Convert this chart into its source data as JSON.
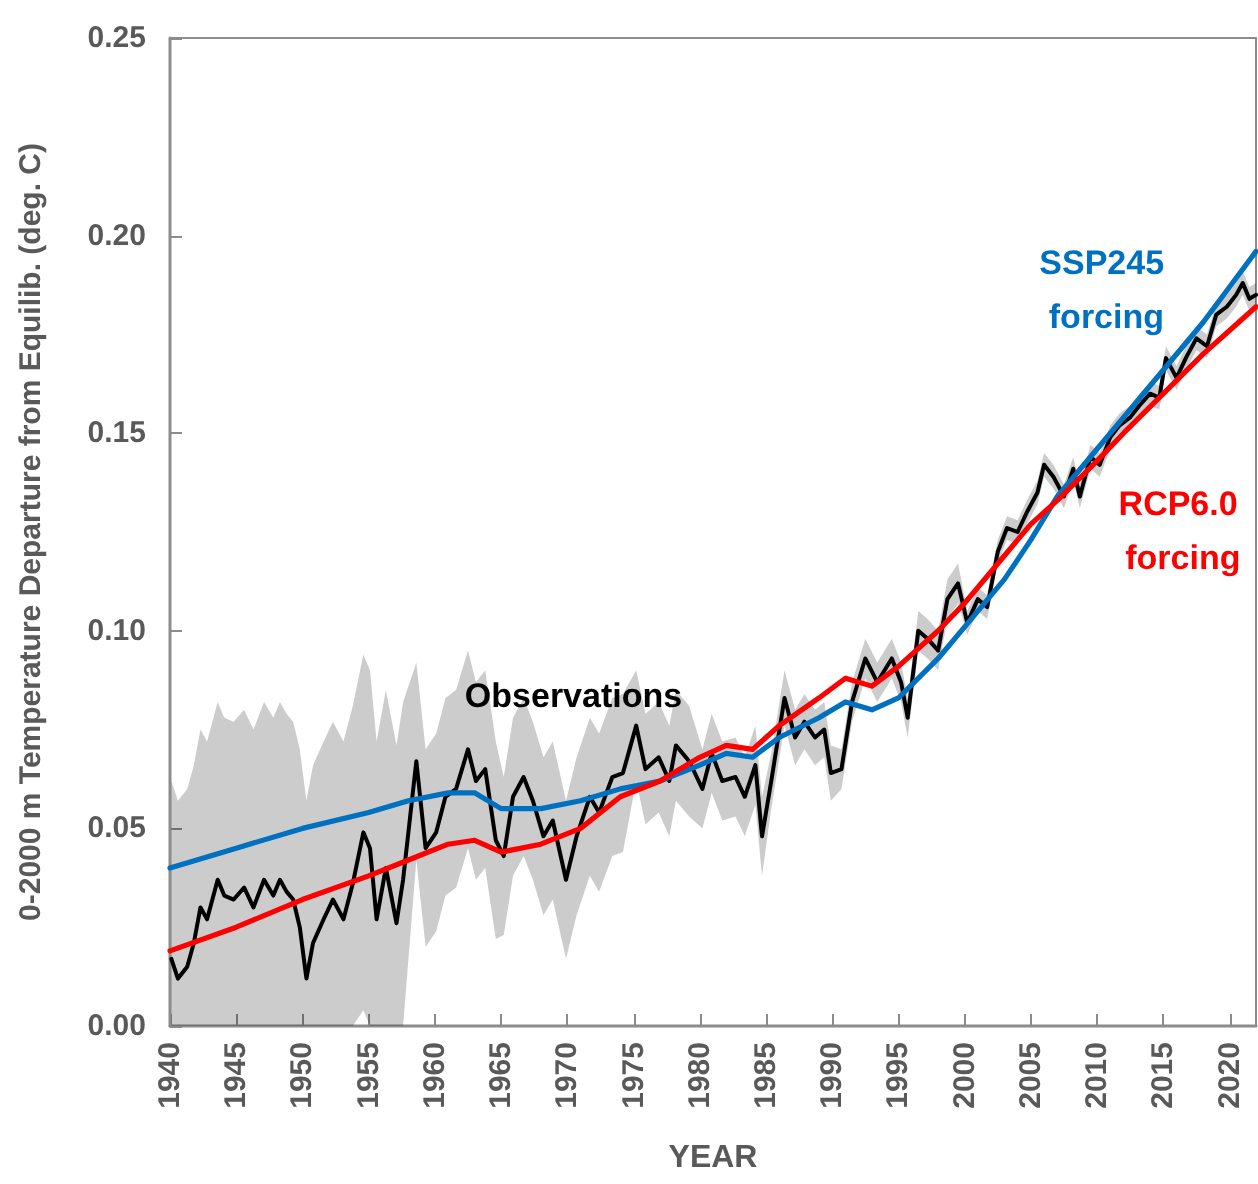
{
  "chart_data": {
    "type": "line",
    "xlabel": "YEAR",
    "ylabel": "0-2000 m Temperature Departure from Equilib. (deg. C)",
    "xlim": [
      1940,
      2022
    ],
    "xticks": [
      1940,
      1945,
      1950,
      1955,
      1960,
      1965,
      1970,
      1975,
      1980,
      1985,
      1990,
      1995,
      2000,
      2005,
      2010,
      2015,
      2020
    ],
    "ylim": [
      0,
      0.25
    ],
    "yticks": [
      {
        "value": 0,
        "label": "0.00"
      },
      {
        "value": 0.05,
        "label": "0.05"
      },
      {
        "value": 0.1,
        "label": "0.10"
      },
      {
        "value": 0.15,
        "label": "0.15"
      },
      {
        "value": 0.2,
        "label": "0.20"
      },
      {
        "value": 0.25,
        "label": "0.25"
      }
    ],
    "line_style": "solid",
    "series": [
      {
        "name": "Observations",
        "color": "#000000",
        "x": [
          1940.1,
          1940.6,
          1941.3,
          1941.8,
          1942.3,
          1942.8,
          1943.6,
          1944.1,
          1944.8,
          1945.6,
          1946.3,
          1947.1,
          1947.8,
          1948.3,
          1948.8,
          1949.3,
          1949.8,
          1950.3,
          1950.8,
          1951.6,
          1952.3,
          1953.1,
          1953.8,
          1954.6,
          1955.1,
          1955.6,
          1956.3,
          1957.1,
          1957.6,
          1958.6,
          1959.3,
          1960.1,
          1960.8,
          1961.6,
          1962.5,
          1963.1,
          1963.8,
          1964.6,
          1965.2,
          1965.9,
          1966.7,
          1967.4,
          1968.2,
          1968.9,
          1969.9,
          1970.7,
          1971.7,
          1972.4,
          1973.4,
          1974.2,
          1975.2,
          1975.9,
          1976.9,
          1977.7,
          1978.2,
          1979.2,
          1980.2,
          1980.9,
          1981.7,
          1982.7,
          1983.4,
          1984.2,
          1984.7,
          1985.4,
          1986.4,
          1987.2,
          1987.9,
          1988.7,
          1989.4,
          1989.9,
          1990.7,
          1991.5,
          1992.5,
          1993.4,
          1994.5,
          1995.2,
          1995.7,
          1996.5,
          1997.2,
          1998.0,
          1998.7,
          1999.5,
          2000.2,
          2001.0,
          2001.7,
          2002.5,
          2003.2,
          2004.0,
          2004.7,
          2005.5,
          2006.0,
          2006.7,
          2007.5,
          2008.2,
          2008.7,
          2009.5,
          2010.2,
          2011.0,
          2011.7,
          2012.5,
          2013.2,
          2014.0,
          2014.7,
          2015.2,
          2016.0,
          2016.7,
          2017.5,
          2018.3,
          2019.0,
          2019.8,
          2020.5,
          2021.0,
          2021.5,
          2022.0
        ],
        "values": [
          0.017,
          0.012,
          0.015,
          0.021,
          0.03,
          0.027,
          0.037,
          0.033,
          0.032,
          0.035,
          0.03,
          0.037,
          0.033,
          0.037,
          0.034,
          0.032,
          0.025,
          0.012,
          0.021,
          0.027,
          0.032,
          0.027,
          0.036,
          0.049,
          0.045,
          0.027,
          0.04,
          0.026,
          0.037,
          0.067,
          0.045,
          0.049,
          0.058,
          0.06,
          0.07,
          0.062,
          0.065,
          0.047,
          0.043,
          0.058,
          0.063,
          0.057,
          0.048,
          0.052,
          0.037,
          0.048,
          0.058,
          0.054,
          0.063,
          0.064,
          0.076,
          0.065,
          0.068,
          0.062,
          0.071,
          0.067,
          0.06,
          0.069,
          0.062,
          0.063,
          0.058,
          0.066,
          0.048,
          0.062,
          0.083,
          0.073,
          0.077,
          0.073,
          0.075,
          0.064,
          0.065,
          0.082,
          0.093,
          0.087,
          0.093,
          0.087,
          0.078,
          0.1,
          0.098,
          0.095,
          0.108,
          0.112,
          0.102,
          0.108,
          0.106,
          0.12,
          0.126,
          0.125,
          0.13,
          0.135,
          0.142,
          0.139,
          0.134,
          0.141,
          0.134,
          0.144,
          0.142,
          0.149,
          0.152,
          0.154,
          0.157,
          0.16,
          0.159,
          0.169,
          0.164,
          0.169,
          0.174,
          0.172,
          0.18,
          0.182,
          0.185,
          0.188,
          0.184,
          0.185
        ],
        "lower": [
          0,
          0,
          0,
          0,
          0,
          0,
          0,
          0,
          0,
          0,
          0,
          0,
          0,
          0,
          0,
          0,
          0,
          0,
          0,
          0,
          0,
          0,
          0,
          0.004,
          0,
          0,
          0,
          0,
          0,
          0.042,
          0.02,
          0.024,
          0.033,
          0.035,
          0.045,
          0.037,
          0.04,
          0.022,
          0.023,
          0.038,
          0.043,
          0.037,
          0.028,
          0.032,
          0.017,
          0.028,
          0.038,
          0.034,
          0.043,
          0.044,
          0.062,
          0.051,
          0.054,
          0.048,
          0.057,
          0.053,
          0.05,
          0.059,
          0.052,
          0.053,
          0.048,
          0.056,
          0.038,
          0.055,
          0.076,
          0.066,
          0.07,
          0.066,
          0.068,
          0.057,
          0.06,
          0.077,
          0.088,
          0.082,
          0.088,
          0.082,
          0.073,
          0.095,
          0.093,
          0.09,
          0.103,
          0.107,
          0.099,
          0.105,
          0.103,
          0.117,
          0.123,
          0.122,
          0.127,
          0.132,
          0.139,
          0.136,
          0.131,
          0.138,
          0.131,
          0.141,
          0.139,
          0.146,
          0.149,
          0.151,
          0.154,
          0.157,
          0.156,
          0.166,
          0.161,
          0.166,
          0.171,
          0.169,
          0.177,
          0.179,
          0.182,
          0.185,
          0.181,
          0.182
        ],
        "upper": [
          0.062,
          0.057,
          0.06,
          0.066,
          0.075,
          0.072,
          0.082,
          0.078,
          0.077,
          0.08,
          0.075,
          0.082,
          0.078,
          0.082,
          0.079,
          0.077,
          0.07,
          0.057,
          0.066,
          0.072,
          0.077,
          0.072,
          0.081,
          0.094,
          0.09,
          0.072,
          0.085,
          0.071,
          0.082,
          0.092,
          0.07,
          0.074,
          0.083,
          0.085,
          0.095,
          0.087,
          0.09,
          0.072,
          0.063,
          0.078,
          0.083,
          0.077,
          0.068,
          0.072,
          0.057,
          0.068,
          0.078,
          0.074,
          0.083,
          0.084,
          0.09,
          0.079,
          0.082,
          0.076,
          0.085,
          0.081,
          0.07,
          0.079,
          0.072,
          0.073,
          0.068,
          0.076,
          0.058,
          0.069,
          0.09,
          0.08,
          0.084,
          0.08,
          0.082,
          0.071,
          0.07,
          0.087,
          0.098,
          0.092,
          0.098,
          0.092,
          0.083,
          0.105,
          0.103,
          0.1,
          0.113,
          0.117,
          0.105,
          0.111,
          0.109,
          0.123,
          0.129,
          0.128,
          0.133,
          0.138,
          0.145,
          0.142,
          0.137,
          0.144,
          0.137,
          0.147,
          0.145,
          0.152,
          0.155,
          0.157,
          0.16,
          0.163,
          0.162,
          0.172,
          0.167,
          0.172,
          0.177,
          0.175,
          0.183,
          0.185,
          0.188,
          0.191,
          0.187,
          0.188
        ]
      },
      {
        "name": "SSP245 forcing",
        "color": "#0070c0",
        "x": [
          1940,
          1945,
          1950,
          1955,
          1958,
          1961,
          1963,
          1965,
          1968,
          1971,
          1974,
          1977,
          1980,
          1982,
          1984,
          1986,
          1989,
          1991,
          1993,
          1995,
          1998,
          2000,
          2003,
          2005,
          2007,
          2010,
          2012,
          2015,
          2018,
          2020,
          2022
        ],
        "values": [
          0.04,
          0.045,
          0.05,
          0.054,
          0.057,
          0.059,
          0.059,
          0.055,
          0.055,
          0.057,
          0.06,
          0.062,
          0.066,
          0.069,
          0.068,
          0.073,
          0.078,
          0.082,
          0.08,
          0.083,
          0.093,
          0.101,
          0.113,
          0.123,
          0.134,
          0.146,
          0.154,
          0.166,
          0.178,
          0.187,
          0.196
        ]
      },
      {
        "name": "RCP6.0 forcing",
        "color": "#ff0000",
        "x": [
          1940,
          1945,
          1950,
          1955,
          1958,
          1961,
          1963,
          1965,
          1968,
          1971,
          1974,
          1977,
          1980,
          1982,
          1984,
          1986,
          1989,
          1991,
          1993,
          1995,
          1998,
          2000,
          2003,
          2005,
          2007,
          2010,
          2012,
          2015,
          2018,
          2020,
          2022
        ],
        "values": [
          0.019,
          0.025,
          0.032,
          0.038,
          0.042,
          0.046,
          0.047,
          0.044,
          0.046,
          0.05,
          0.058,
          0.062,
          0.068,
          0.071,
          0.07,
          0.076,
          0.083,
          0.088,
          0.086,
          0.091,
          0.1,
          0.107,
          0.119,
          0.127,
          0.133,
          0.143,
          0.15,
          0.16,
          0.17,
          0.176,
          0.182
        ]
      }
    ]
  }
}
